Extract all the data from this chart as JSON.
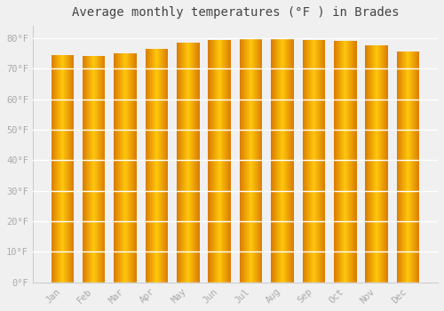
{
  "title": "Average monthly temperatures (°F ) in Brades",
  "months": [
    "Jan",
    "Feb",
    "Mar",
    "Apr",
    "May",
    "Jun",
    "Jul",
    "Aug",
    "Sep",
    "Oct",
    "Nov",
    "Dec"
  ],
  "values": [
    74.5,
    74.0,
    75.0,
    76.5,
    78.5,
    79.5,
    80.0,
    80.0,
    79.5,
    79.0,
    77.5,
    75.5
  ],
  "bar_color_center": "#FFD54F",
  "bar_color_edge": "#E65100",
  "background_color": "#f0f0f0",
  "plot_bg_color": "#f0f0f0",
  "grid_color": "#ffffff",
  "ytick_labels": [
    "0°F",
    "10°F",
    "20°F",
    "30°F",
    "40°F",
    "50°F",
    "60°F",
    "70°F",
    "80°F"
  ],
  "ytick_values": [
    0,
    10,
    20,
    30,
    40,
    50,
    60,
    70,
    80
  ],
  "ylim": [
    0,
    84
  ],
  "title_fontsize": 10,
  "tick_fontsize": 7.5,
  "tick_color": "#aaaaaa",
  "font_family": "monospace"
}
